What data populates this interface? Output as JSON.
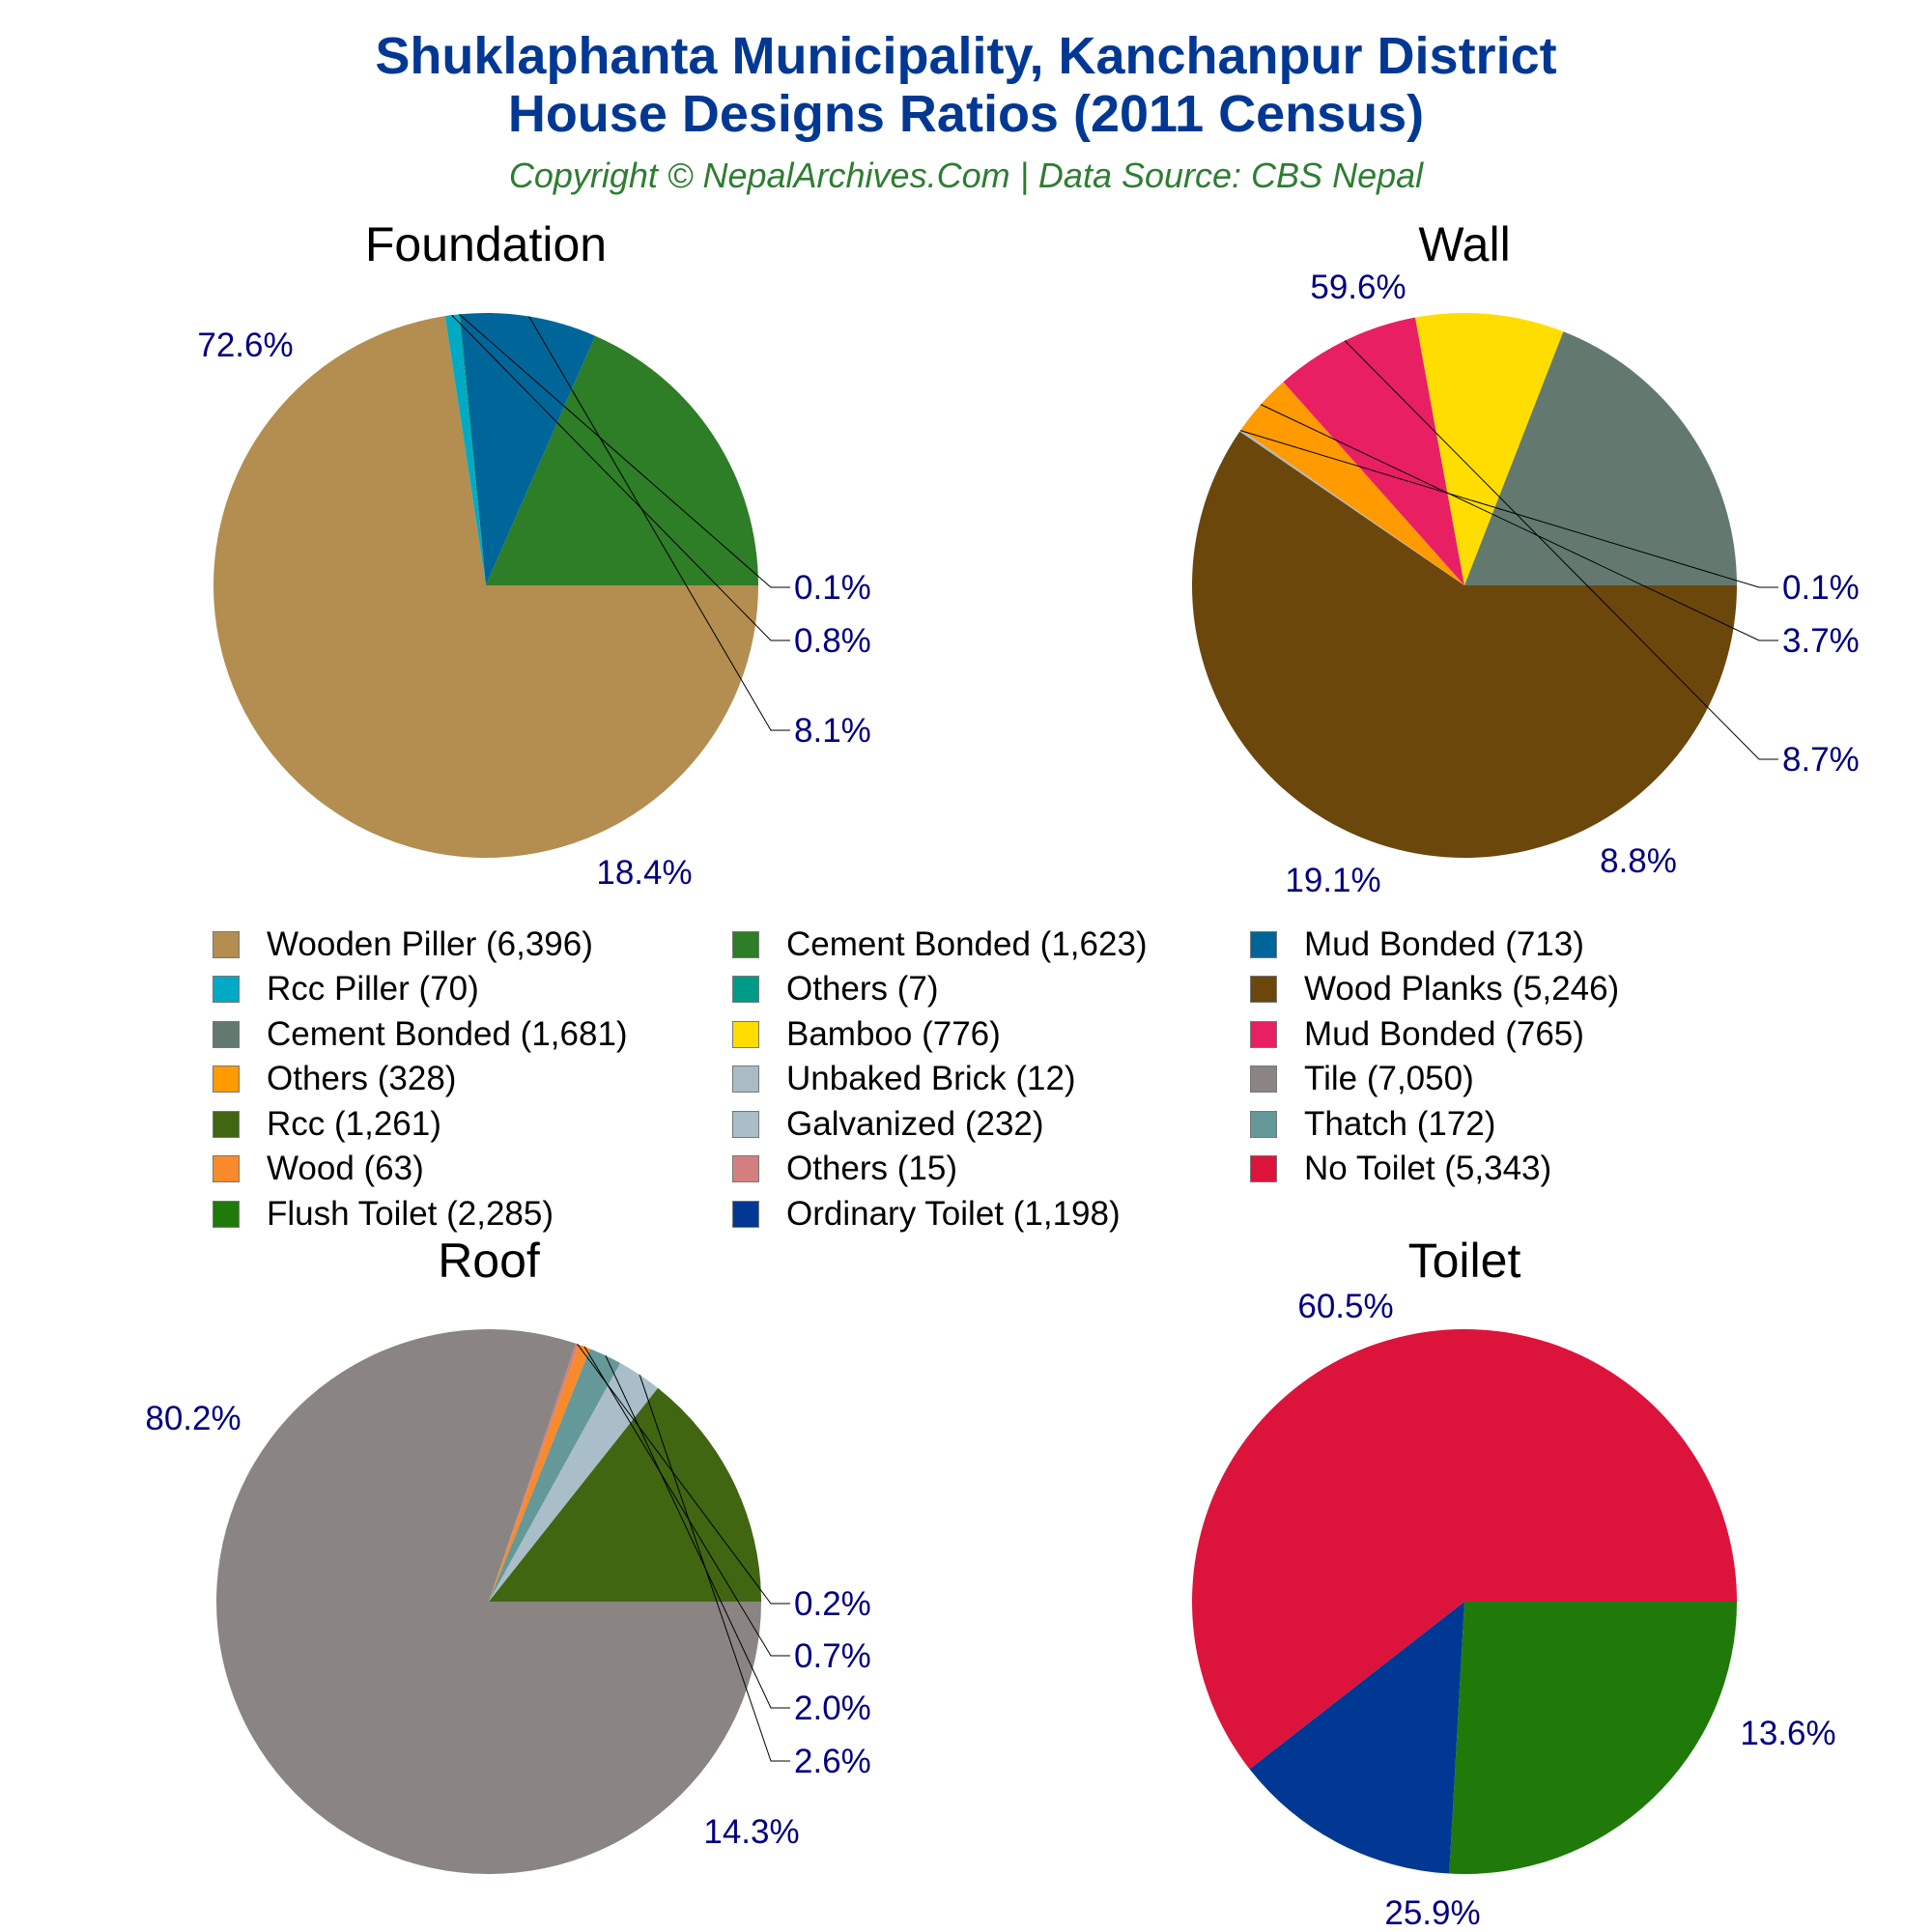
{
  "header": {
    "title_line1": "Shuklaphanta Municipality, Kanchanpur District",
    "title_line2": "House Designs Ratios (2011 Census)",
    "subtitle": "Copyright © NepalArchives.Com | Data Source: CBS Nepal"
  },
  "colors": {
    "title": "#003893",
    "subtitle": "#2e7d32",
    "percent_label": "#000080",
    "panel_title": "#000000"
  },
  "chart_data": [
    {
      "type": "pie",
      "title": "Foundation",
      "categories": [
        "Wooden Piller",
        "Rcc Piller",
        "Others",
        "Mud Bonded",
        "Cement Bonded"
      ],
      "values": [
        6396,
        70,
        7,
        713,
        1623
      ],
      "percent_labels": [
        "72.6%",
        "0.8%",
        "0.1%",
        "8.1%",
        "18.4%"
      ],
      "colors": [
        "#b38e50",
        "#00aac4",
        "#009a88",
        "#006699",
        "#2e7d27"
      ],
      "start_angle_deg": 0,
      "direction": "clockwise"
    },
    {
      "type": "pie",
      "title": "Wall",
      "categories": [
        "Wood Planks",
        "Unbaked Brick",
        "Others",
        "Mud Bonded",
        "Bamboo",
        "Cement Bonded"
      ],
      "values": [
        5246,
        12,
        328,
        765,
        776,
        1681
      ],
      "percent_labels": [
        "59.6%",
        "0.1%",
        "3.7%",
        "8.7%",
        "8.8%",
        "19.1%"
      ],
      "colors": [
        "#6b470c",
        "#aabbc3",
        "#ff9a00",
        "#e91f63",
        "#ffdd00",
        "#637970"
      ],
      "start_angle_deg": 0,
      "direction": "clockwise"
    },
    {
      "type": "pie",
      "title": "Roof",
      "categories": [
        "Tile",
        "Others",
        "Wood",
        "Thatch",
        "Galvanized",
        "Rcc"
      ],
      "values": [
        7050,
        15,
        63,
        172,
        232,
        1261
      ],
      "percent_labels": [
        "80.2%",
        "0.2%",
        "0.7%",
        "2.0%",
        "2.6%",
        "14.3%"
      ],
      "colors": [
        "#8a8582",
        "#d47f7f",
        "#f98a2b",
        "#659999",
        "#a9bec8",
        "#406612"
      ],
      "start_angle_deg": 0,
      "direction": "clockwise"
    },
    {
      "type": "pie",
      "title": "Toilet",
      "categories": [
        "No Toilet",
        "Flush Toilet",
        "Ordinary Toilet"
      ],
      "values": [
        5343,
        2285,
        1198
      ],
      "percent_labels": [
        "60.5%",
        "25.9%",
        "13.6%"
      ],
      "colors": [
        "#dc143c",
        "#1f7a0a",
        "#003893"
      ],
      "start_angle_deg": 90,
      "direction": "clockwise"
    }
  ],
  "legend": {
    "columns": [
      [
        {
          "label": "Wooden Piller (6,396)",
          "color": "#b38e50"
        },
        {
          "label": "Rcc Piller (70)",
          "color": "#00aac4"
        },
        {
          "label": "Cement Bonded (1,681)",
          "color": "#637970"
        },
        {
          "label": "Others (328)",
          "color": "#ff9a00"
        },
        {
          "label": "Rcc (1,261)",
          "color": "#406612"
        },
        {
          "label": "Wood (63)",
          "color": "#f98a2b"
        },
        {
          "label": "Flush Toilet (2,285)",
          "color": "#1f7a0a"
        }
      ],
      [
        {
          "label": "Cement Bonded (1,623)",
          "color": "#2e7d27"
        },
        {
          "label": "Others (7)",
          "color": "#009a88"
        },
        {
          "label": "Bamboo (776)",
          "color": "#ffdd00"
        },
        {
          "label": "Unbaked Brick (12)",
          "color": "#aabbc3"
        },
        {
          "label": "Galvanized (232)",
          "color": "#a9bec8"
        },
        {
          "label": "Others (15)",
          "color": "#d47f7f"
        },
        {
          "label": "Ordinary Toilet (1,198)",
          "color": "#003893"
        }
      ],
      [
        {
          "label": "Mud Bonded (713)",
          "color": "#006699"
        },
        {
          "label": "Wood Planks (5,246)",
          "color": "#6b470c"
        },
        {
          "label": "Mud Bonded (765)",
          "color": "#e91f63"
        },
        {
          "label": "Tile (7,050)",
          "color": "#8a8582"
        },
        {
          "label": "Thatch (172)",
          "color": "#659999"
        },
        {
          "label": "No Toilet (5,343)",
          "color": "#dc143c"
        }
      ]
    ]
  }
}
